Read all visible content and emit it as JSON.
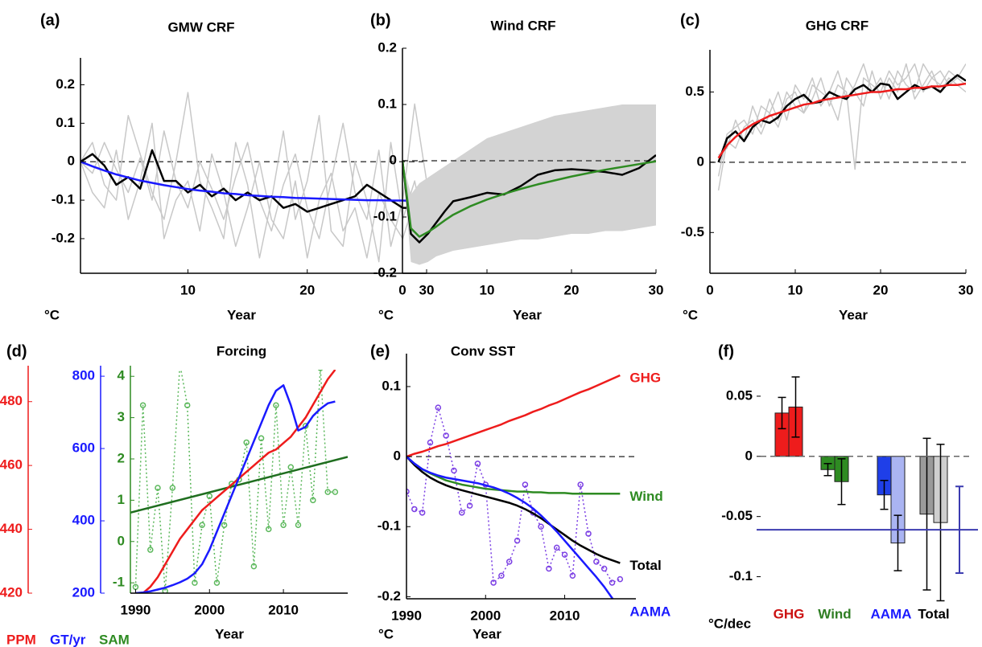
{
  "chart_data": [
    {
      "type": "line",
      "label": "(a)",
      "title": "GMW CRF",
      "xlabel": "Year",
      "unit": "°C",
      "xlim": [
        1,
        30
      ],
      "xticks": [
        10,
        20,
        30
      ],
      "ylim": [
        -0.29,
        0.27
      ],
      "yticks": [
        -0.2,
        -0.1,
        0,
        0.1,
        0.2
      ],
      "zero_line": true,
      "x": [
        1,
        2,
        3,
        4,
        5,
        6,
        7,
        8,
        9,
        10,
        11,
        12,
        13,
        14,
        15,
        16,
        17,
        18,
        19,
        20,
        21,
        22,
        23,
        24,
        25,
        26,
        27,
        28,
        29,
        30
      ],
      "series": [
        {
          "kind": "ensemble",
          "color": "#c8c8c8",
          "values": [
            0,
            -0.03,
            0.05,
            -0.02,
            -0.08,
            0.01,
            -0.1,
            0.08,
            -0.05,
            -0.12,
            0,
            -0.07,
            -0.15,
            -0.04,
            0.05,
            -0.1,
            -0.18,
            -0.06,
            0.02,
            -0.12,
            -0.2,
            -0.05,
            0.1,
            -0.08,
            -0.15,
            0.03,
            -0.22,
            -0.1,
            0.15,
            -0.05
          ]
        },
        {
          "kind": "ensemble",
          "color": "#c8c8c8",
          "values": [
            0,
            0.05,
            -0.06,
            -0.1,
            0.12,
            0.02,
            -0.08,
            -0.15,
            0,
            0.18,
            -0.05,
            -0.12,
            -0.2,
            0.05,
            -0.06,
            -0.25,
            -0.1,
            0.08,
            -0.15,
            -0.05,
            0.12,
            -0.18,
            -0.22,
            0,
            -0.1,
            -0.26,
            0.05,
            -0.15,
            -0.05,
            -0.2
          ]
        },
        {
          "kind": "ensemble",
          "color": "#c8c8c8",
          "values": [
            0,
            -0.08,
            -0.12,
            0.03,
            -0.15,
            -0.05,
            0.1,
            -0.2,
            -0.1,
            -0.05,
            -0.18,
            0.02,
            -0.08,
            -0.22,
            -0.12,
            0,
            -0.15,
            -0.2,
            -0.05,
            -0.25,
            -0.1,
            -0.03,
            -0.18,
            -0.12,
            -0.25,
            -0.08,
            -0.15,
            -0.2,
            -0.1,
            -0.22
          ]
        },
        {
          "color": "#000000",
          "values": [
            0,
            0.02,
            -0.01,
            -0.06,
            -0.04,
            -0.07,
            0.03,
            -0.05,
            -0.05,
            -0.08,
            -0.06,
            -0.09,
            -0.07,
            -0.1,
            -0.08,
            -0.1,
            -0.09,
            -0.12,
            -0.11,
            -0.13,
            -0.12,
            -0.11,
            -0.1,
            -0.09,
            -0.06,
            -0.08,
            -0.1,
            -0.12,
            -0.12,
            -0.13
          ]
        },
        {
          "color": "#1a1aff",
          "values": [
            0,
            -0.012,
            -0.023,
            -0.033,
            -0.041,
            -0.049,
            -0.055,
            -0.061,
            -0.066,
            -0.071,
            -0.075,
            -0.078,
            -0.082,
            -0.084,
            -0.087,
            -0.089,
            -0.091,
            -0.092,
            -0.094,
            -0.095,
            -0.096,
            -0.097,
            -0.098,
            -0.099,
            -0.1,
            -0.1,
            -0.101,
            -0.101,
            -0.102,
            -0.102
          ]
        }
      ]
    },
    {
      "type": "line",
      "label": "(b)",
      "title": "Wind CRF",
      "xlabel": "Year",
      "unit": "°C",
      "xlim": [
        0,
        30
      ],
      "xticks": [
        0,
        10,
        20,
        30
      ],
      "ylim": [
        -0.2,
        0.2
      ],
      "yticks": [
        -0.2,
        -0.1,
        0,
        0.1,
        0.2
      ],
      "zero_line": true,
      "x": [
        0,
        1,
        2,
        3,
        4,
        5,
        6,
        8,
        10,
        12,
        14,
        16,
        18,
        20,
        22,
        24,
        26,
        28,
        30
      ],
      "band": {
        "color": "#d3d3d3",
        "lower": [
          0,
          -0.18,
          -0.185,
          -0.18,
          -0.17,
          -0.165,
          -0.16,
          -0.155,
          -0.15,
          -0.145,
          -0.14,
          -0.14,
          -0.135,
          -0.13,
          -0.13,
          -0.125,
          -0.125,
          -0.12,
          -0.115
        ],
        "upper": [
          0,
          -0.06,
          -0.04,
          -0.03,
          -0.02,
          -0.01,
          0,
          0.02,
          0.04,
          0.05,
          0.06,
          0.07,
          0.08,
          0.085,
          0.09,
          0.095,
          0.1,
          0.1,
          0.1
        ]
      },
      "series": [
        {
          "color": "#000000",
          "values": [
            0,
            -0.13,
            -0.145,
            -0.13,
            -0.11,
            -0.09,
            -0.072,
            -0.065,
            -0.057,
            -0.06,
            -0.045,
            -0.025,
            -0.017,
            -0.015,
            -0.017,
            -0.02,
            -0.025,
            -0.013,
            0.01
          ]
        },
        {
          "color": "#2e8b22",
          "values": [
            0,
            -0.12,
            -0.135,
            -0.127,
            -0.117,
            -0.106,
            -0.096,
            -0.081,
            -0.069,
            -0.059,
            -0.05,
            -0.042,
            -0.035,
            -0.028,
            -0.022,
            -0.016,
            -0.011,
            -0.006,
            -0.001
          ]
        }
      ]
    },
    {
      "type": "line",
      "label": "(c)",
      "title": "GHG CRF",
      "xlabel": "Year",
      "unit": "°C",
      "xlim": [
        0,
        30
      ],
      "xticks": [
        0,
        10,
        20,
        30
      ],
      "ylim": [
        -0.79,
        0.8
      ],
      "yticks": [
        -0.5,
        0,
        0.5
      ],
      "zero_line": true,
      "x": [
        1,
        2,
        3,
        4,
        5,
        6,
        7,
        8,
        9,
        10,
        11,
        12,
        13,
        14,
        15,
        16,
        17,
        18,
        19,
        20,
        21,
        22,
        23,
        24,
        25,
        26,
        27,
        28,
        29,
        30
      ],
      "series": [
        {
          "kind": "ensemble",
          "color": "#c8c8c8",
          "values": [
            -0.1,
            0.2,
            0.25,
            0.3,
            0.2,
            0.4,
            0.35,
            0.5,
            0.3,
            0.55,
            0.45,
            0.6,
            0.4,
            0.5,
            0.65,
            0.45,
            0.55,
            0.7,
            0.5,
            0.6,
            0.45,
            0.65,
            0.55,
            0.5,
            0.7,
            0.6,
            0.55,
            0.65,
            0.6,
            0.7
          ]
        },
        {
          "kind": "ensemble",
          "color": "#c8c8c8",
          "values": [
            0.05,
            0.1,
            0.3,
            0.15,
            0.4,
            0.25,
            0.45,
            0.3,
            0.5,
            0.4,
            0.35,
            0.55,
            0.5,
            0.45,
            0.3,
            0.6,
            0.5,
            0.4,
            0.65,
            0.45,
            0.6,
            0.5,
            0.7,
            0.45,
            0.55,
            0.65,
            0.5,
            0.6,
            0.55,
            0.5
          ]
        },
        {
          "kind": "ensemble",
          "color": "#c8c8c8",
          "values": [
            -0.2,
            0.15,
            0.1,
            0.25,
            0.3,
            0.2,
            0.35,
            0.25,
            0.45,
            0.5,
            0.35,
            0.45,
            0.6,
            0.4,
            0.55,
            0.5,
            -0.05,
            0.6,
            0.55,
            0.5,
            0.65,
            0.55,
            0.6,
            0.7,
            0.5,
            0.6,
            0.65,
            0.55,
            0.6,
            0.55
          ]
        },
        {
          "color": "#000000",
          "values": [
            0,
            0.17,
            0.22,
            0.15,
            0.25,
            0.3,
            0.28,
            0.32,
            0.4,
            0.45,
            0.48,
            0.42,
            0.43,
            0.5,
            0.47,
            0.45,
            0.52,
            0.55,
            0.5,
            0.56,
            0.55,
            0.45,
            0.5,
            0.55,
            0.52,
            0.54,
            0.5,
            0.57,
            0.62,
            0.58
          ]
        },
        {
          "color": "#ee1c1c",
          "values": [
            0.03,
            0.12,
            0.18,
            0.23,
            0.27,
            0.3,
            0.33,
            0.35,
            0.37,
            0.39,
            0.41,
            0.42,
            0.44,
            0.45,
            0.46,
            0.47,
            0.48,
            0.49,
            0.5,
            0.5,
            0.51,
            0.52,
            0.52,
            0.53,
            0.53,
            0.54,
            0.54,
            0.55,
            0.55,
            0.56
          ]
        }
      ]
    },
    {
      "type": "line",
      "label": "(d)",
      "title": "Forcing",
      "xlabel": "Year",
      "xlim": [
        1989.3,
        2018.7
      ],
      "xticks": [
        1990,
        2000,
        2010
      ],
      "axes": [
        {
          "label": "PPM",
          "color": "#ee1c1c",
          "ylim": [
            420,
            490
          ],
          "yticks": [
            420,
            440,
            460,
            480
          ]
        },
        {
          "label": "GT/yr",
          "color": "#1a1aff",
          "ylim": [
            200,
            818
          ],
          "yticks": [
            200,
            400,
            600,
            800
          ]
        },
        {
          "label": "SAM",
          "color": "#2e8b22",
          "ylim": [
            -1.25,
            4.16
          ],
          "yticks": [
            -1,
            0,
            1,
            2,
            3,
            4
          ]
        }
      ],
      "x": [
        1990,
        1991,
        1992,
        1993,
        1994,
        1995,
        1996,
        1997,
        1998,
        1999,
        2000,
        2001,
        2002,
        2003,
        2004,
        2005,
        2006,
        2007,
        2008,
        2009,
        2010,
        2011,
        2012,
        2013,
        2014,
        2015,
        2016,
        2017
      ],
      "series": [
        {
          "axis": 2,
          "color": "#5cb85c",
          "linestyle": "dotted",
          "markers": true,
          "values": [
            -1.1,
            3.3,
            -0.2,
            1.3,
            -1.2,
            1.3,
            4.3,
            3.3,
            -1,
            0.4,
            1.1,
            -1,
            0.4,
            1.4,
            1.5,
            2.4,
            -0.6,
            2.5,
            0.3,
            3.3,
            0.4,
            1.8,
            0.4,
            2.8,
            1,
            4.2,
            1.2,
            1.2
          ]
        },
        {
          "axis": 2,
          "color": "#1f6e1f",
          "x": [
            1989.3,
            2018.7
          ],
          "values": [
            0.7,
            2.05
          ]
        },
        {
          "axis": 0,
          "color": "#ee1c1c",
          "values": [
            420,
            420,
            422,
            425,
            429,
            433,
            437,
            440,
            443,
            446,
            448,
            450,
            452,
            454,
            456,
            458,
            460,
            462,
            464,
            465,
            467,
            469,
            472,
            475,
            479,
            483,
            487,
            490
          ]
        },
        {
          "axis": 1,
          "color": "#1a1aff",
          "values": [
            200,
            202,
            205,
            210,
            215,
            222,
            230,
            240,
            255,
            280,
            320,
            370,
            420,
            470,
            520,
            570,
            620,
            670,
            720,
            760,
            775,
            720,
            650,
            660,
            690,
            710,
            725,
            730
          ]
        }
      ]
    },
    {
      "type": "line",
      "label": "(e)",
      "title": "Conv SST",
      "xlabel": "Year",
      "unit": "°C",
      "xlim": [
        1990,
        2019
      ],
      "xticks": [
        1990,
        2000,
        2010
      ],
      "ylim": [
        -0.203,
        0.147
      ],
      "yticks": [
        -0.2,
        -0.1,
        0,
        0.1
      ],
      "zero_line": true,
      "end_labels": true,
      "x": [
        1990,
        1991,
        1992,
        1993,
        1994,
        1995,
        1996,
        1997,
        1998,
        1999,
        2000,
        2001,
        2002,
        2003,
        2004,
        2005,
        2006,
        2007,
        2008,
        2009,
        2010,
        2011,
        2012,
        2013,
        2014,
        2015,
        2016,
        2017
      ],
      "series": [
        {
          "color": "#7b3fe4",
          "linestyle": "dotted",
          "markers": true,
          "values": [
            -0.05,
            -0.075,
            -0.08,
            0.02,
            0.07,
            0.03,
            -0.02,
            -0.08,
            -0.07,
            -0.01,
            -0.04,
            -0.18,
            -0.17,
            -0.15,
            -0.12,
            -0.04,
            -0.08,
            -0.1,
            -0.16,
            -0.13,
            -0.14,
            -0.17,
            -0.04,
            -0.11,
            -0.15,
            -0.16,
            -0.18,
            -0.175
          ]
        },
        {
          "name": "GHG",
          "color": "#ee1c1c",
          "values": [
            0,
            0.004,
            0.007,
            0.011,
            0.015,
            0.018,
            0.022,
            0.026,
            0.03,
            0.034,
            0.038,
            0.042,
            0.046,
            0.051,
            0.055,
            0.059,
            0.064,
            0.068,
            0.073,
            0.077,
            0.082,
            0.087,
            0.092,
            0.096,
            0.101,
            0.106,
            0.111,
            0.116
          ]
        },
        {
          "name": "Wind",
          "color": "#2e8b22",
          "values": [
            0,
            -0.01,
            -0.018,
            -0.024,
            -0.029,
            -0.034,
            -0.037,
            -0.04,
            -0.042,
            -0.044,
            -0.046,
            -0.047,
            -0.048,
            -0.049,
            -0.05,
            -0.05,
            -0.051,
            -0.051,
            -0.052,
            -0.052,
            -0.052,
            -0.053,
            -0.053,
            -0.053,
            -0.053,
            -0.053,
            -0.053,
            -0.053
          ]
        },
        {
          "name": "Total",
          "color": "#000000",
          "values": [
            0,
            -0.012,
            -0.022,
            -0.03,
            -0.036,
            -0.041,
            -0.045,
            -0.048,
            -0.051,
            -0.054,
            -0.057,
            -0.06,
            -0.063,
            -0.066,
            -0.07,
            -0.075,
            -0.081,
            -0.088,
            -0.096,
            -0.104,
            -0.112,
            -0.12,
            -0.127,
            -0.133,
            -0.139,
            -0.144,
            -0.148,
            -0.152
          ]
        },
        {
          "name": "AAMA",
          "color": "#1a1aff",
          "values": [
            0,
            -0.01,
            -0.018,
            -0.023,
            -0.027,
            -0.03,
            -0.032,
            -0.034,
            -0.036,
            -0.038,
            -0.041,
            -0.044,
            -0.048,
            -0.053,
            -0.059,
            -0.066,
            -0.074,
            -0.084,
            -0.095,
            -0.107,
            -0.12,
            -0.133,
            -0.146,
            -0.159,
            -0.172,
            -0.186,
            -0.202,
            -0.218
          ]
        }
      ]
    },
    {
      "type": "bar",
      "label": "(f)",
      "unit": "°C/dec",
      "ylim": [
        -0.115,
        0.072
      ],
      "yticks": [
        -0.1,
        -0.05,
        0,
        0.05
      ],
      "zero_line": true,
      "categories": [
        "GHG",
        "Wind",
        "AAMA",
        "Total"
      ],
      "category_colors": [
        "#cc1111",
        "#2e7d22",
        "#1a1aff",
        "#000000"
      ],
      "series": [
        {
          "colors": [
            "#ee1c1c",
            "#2e8b22",
            "#1f3fe8",
            "#9a9a9a"
          ],
          "values": [
            0.036,
            -0.011,
            -0.032,
            -0.048
          ],
          "errors": [
            0.013,
            0.005,
            0.012,
            0.063
          ]
        },
        {
          "colors": [
            "#ee1c1c",
            "#2e8b22",
            "#aab4f2",
            "#cfcfcf"
          ],
          "values": [
            0.041,
            -0.021,
            -0.072,
            -0.055
          ],
          "errors": [
            0.025,
            0.019,
            0.023,
            0.065
          ]
        }
      ],
      "reference": {
        "color": "#3b3bb0",
        "value": -0.061,
        "error": 0.036
      }
    }
  ]
}
